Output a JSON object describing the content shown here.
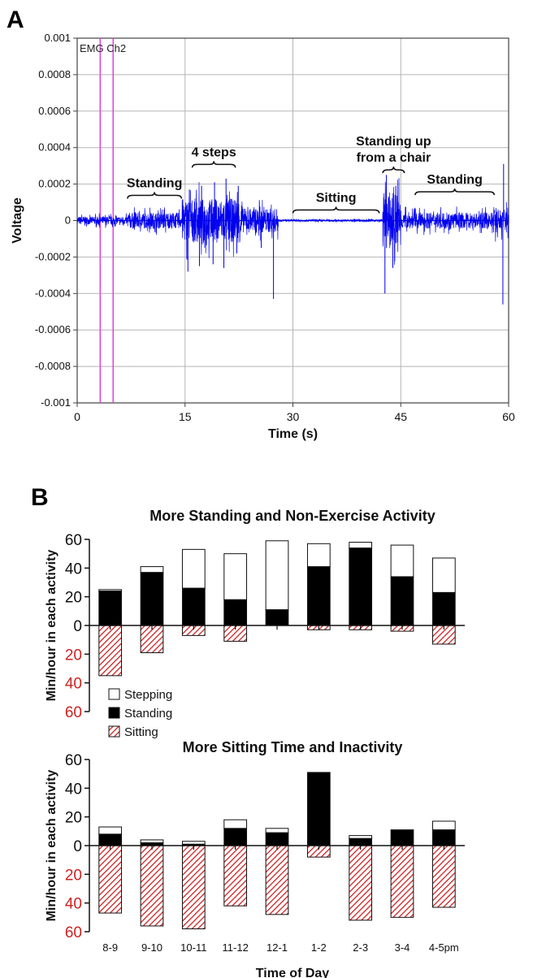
{
  "panels": {
    "a_letter": "A",
    "b_letter": "B"
  },
  "colors": {
    "signal": "#0000ee",
    "marker": "#e040e0",
    "sitting_hatch": "#cc2222",
    "standing": "#000000",
    "stepping": "#ffffff",
    "negative_tick": "#cc2222"
  },
  "chart_data": [
    {
      "type": "line",
      "title": "",
      "series_label": "EMG Ch2",
      "xlabel": "Time (s)",
      "ylabel": "Voltage",
      "xlim": [
        0,
        60
      ],
      "ylim": [
        -0.001,
        0.001
      ],
      "xticks": [
        0,
        15,
        30,
        45,
        60
      ],
      "yticks": [
        0.001,
        0.0008,
        0.0006,
        0.0004,
        0.0002,
        0,
        -0.0002,
        -0.0004,
        -0.0006,
        -0.0008,
        -0.001
      ],
      "ytick_labels": [
        "0.001",
        "0.0008",
        "0.0006",
        "0.0004",
        "0.0002",
        "0",
        "-0.0002",
        "-0.0004",
        "-0.0006",
        "-0.0008",
        "-0.001"
      ],
      "grid": true,
      "markers_s": [
        3.2,
        5.0
      ],
      "segments": [
        {
          "start": 0,
          "end": 7,
          "amp": 4e-05
        },
        {
          "start": 7,
          "end": 14.5,
          "amp": 8e-05
        },
        {
          "start": 14.5,
          "end": 23,
          "amp": 0.00022
        },
        {
          "start": 23,
          "end": 28,
          "amp": 0.00012
        },
        {
          "start": 28,
          "end": 42.5,
          "amp": 1e-05
        },
        {
          "start": 42.5,
          "end": 45,
          "amp": 0.00028
        },
        {
          "start": 45,
          "end": 58,
          "amp": 8e-05
        },
        {
          "start": 58,
          "end": 60,
          "amp": 0.00012
        }
      ],
      "spikes": [
        {
          "t": 15.4,
          "v": -0.00028
        },
        {
          "t": 15.6,
          "v": 0.00017
        },
        {
          "t": 17.0,
          "v": -0.00025
        },
        {
          "t": 17.3,
          "v": 0.00019
        },
        {
          "t": 18.9,
          "v": -0.00024
        },
        {
          "t": 19.1,
          "v": 0.00021
        },
        {
          "t": 20.4,
          "v": -0.00026
        },
        {
          "t": 20.7,
          "v": 0.00023
        },
        {
          "t": 22.2,
          "v": -0.00018
        },
        {
          "t": 22.4,
          "v": 0.00019
        },
        {
          "t": 25.6,
          "v": -0.00015
        },
        {
          "t": 27.3,
          "v": -0.00043
        },
        {
          "t": 42.8,
          "v": -0.0004
        },
        {
          "t": 43.0,
          "v": 0.00025
        },
        {
          "t": 43.9,
          "v": -0.00026
        },
        {
          "t": 44.3,
          "v": 0.00019
        },
        {
          "t": 59.2,
          "v": -0.00046
        },
        {
          "t": 59.3,
          "v": 0.00031
        }
      ],
      "annotations": [
        {
          "text": "Standing",
          "t_start": 7,
          "t_end": 14.5,
          "brace_v": 0.00012,
          "lines": 1
        },
        {
          "text": "4 steps",
          "t_start": 16,
          "t_end": 22,
          "brace_v": 0.00029,
          "lines": 1
        },
        {
          "text": "Sitting",
          "t_start": 30,
          "t_end": 42,
          "brace_v": 4e-05,
          "lines": 1
        },
        {
          "text_lines": [
            "Standing up",
            "from a chair"
          ],
          "t_start": 42.5,
          "t_end": 45.5,
          "brace_v": 0.00026,
          "lines": 2
        },
        {
          "text": "Standing",
          "t_start": 47,
          "t_end": 58,
          "brace_v": 0.00014,
          "lines": 1
        }
      ]
    },
    {
      "type": "bar",
      "stacked": true,
      "title": "More Standing and Non-Exercise Activity",
      "ylabel": "Min/hour in each activity",
      "ylim": [
        -60,
        60
      ],
      "yticks": [
        60,
        40,
        20,
        0,
        20,
        40,
        60
      ],
      "ytick_values": [
        60,
        40,
        20,
        0,
        -20,
        -40,
        -60
      ],
      "categories": [
        "8-9",
        "9-10",
        "10-11",
        "11-12",
        "12-1",
        "1-2",
        "2-3",
        "3-4",
        "4-5pm"
      ],
      "series": [
        {
          "name": "Stepping",
          "values": [
            1,
            4,
            27,
            32,
            48,
            16,
            4,
            22,
            24
          ]
        },
        {
          "name": "Standing",
          "values": [
            24,
            37,
            26,
            18,
            11,
            41,
            54,
            34,
            23
          ]
        },
        {
          "name": "Sitting",
          "values": [
            -35,
            -19,
            -7,
            -11,
            0,
            -3,
            -3,
            -4,
            -13
          ]
        }
      ],
      "legend": [
        "Stepping",
        "Standing",
        "Sitting"
      ]
    },
    {
      "type": "bar",
      "stacked": true,
      "title": "More Sitting Time and Inactivity",
      "ylabel": "Min/hour in each activity",
      "xlabel": "Time of Day",
      "ylim": [
        -60,
        60
      ],
      "yticks": [
        60,
        40,
        20,
        0,
        20,
        40,
        60
      ],
      "ytick_values": [
        60,
        40,
        20,
        0,
        -20,
        -40,
        -60
      ],
      "categories": [
        "8-9",
        "9-10",
        "10-11",
        "11-12",
        "12-1",
        "1-2",
        "2-3",
        "3-4",
        "4-5pm"
      ],
      "series": [
        {
          "name": "Stepping",
          "values": [
            5,
            2,
            2,
            6,
            3,
            0,
            2,
            0,
            6
          ]
        },
        {
          "name": "Standing",
          "values": [
            8,
            2,
            1,
            12,
            9,
            51,
            5,
            11,
            11
          ]
        },
        {
          "name": "Sitting",
          "values": [
            -47,
            -56,
            -58,
            -42,
            -48,
            -8,
            -52,
            -50,
            -43
          ]
        }
      ]
    }
  ]
}
